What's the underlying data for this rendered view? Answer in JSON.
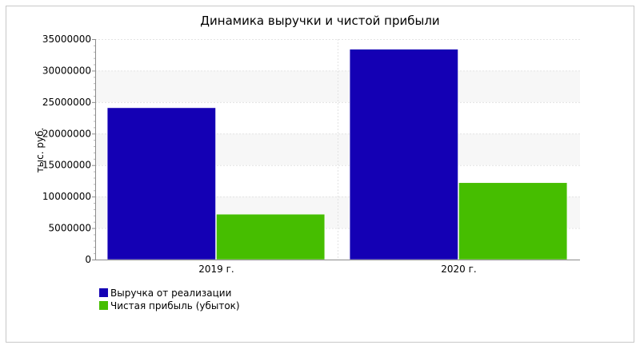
{
  "chart_data": {
    "type": "bar",
    "title": "Динамика выручки и чистой прибыли",
    "xlabel": "",
    "ylabel": "тыс. руб.",
    "categories": [
      "2019 г.",
      "2020 г."
    ],
    "ylim": [
      0,
      35000000
    ],
    "yticks": [
      0,
      5000000,
      10000000,
      15000000,
      20000000,
      25000000,
      30000000,
      35000000
    ],
    "grid": true,
    "legend_position": "bottom-left",
    "series": [
      {
        "name": "Выручка от реализации",
        "color": "#1400b4",
        "values": [
          24100000,
          33400000
        ]
      },
      {
        "name": "Чистая прибыль (убыток)",
        "color": "#46be00",
        "values": [
          7200000,
          12200000
        ]
      }
    ]
  }
}
